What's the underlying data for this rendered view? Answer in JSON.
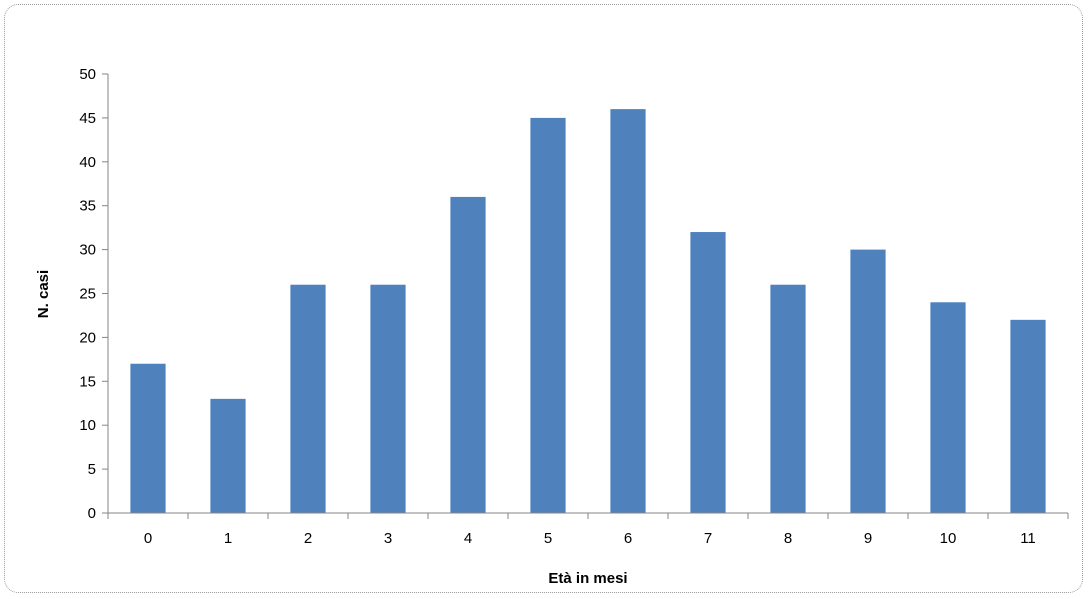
{
  "chart_data": {
    "type": "bar",
    "categories": [
      "0",
      "1",
      "2",
      "3",
      "4",
      "5",
      "6",
      "7",
      "8",
      "9",
      "10",
      "11"
    ],
    "values": [
      17,
      13,
      26,
      26,
      36,
      45,
      46,
      32,
      26,
      30,
      24,
      22
    ],
    "yticks": [
      "0",
      "5",
      "10",
      "15",
      "20",
      "25",
      "30",
      "35",
      "40",
      "45",
      "50"
    ],
    "ylim": [
      0,
      50
    ],
    "title": "",
    "xlabel": "Età in mesi",
    "ylabel": "N. casi",
    "grid": false,
    "legend": "none",
    "bar_color": "#4f81bd",
    "axis_color": "#868686"
  }
}
